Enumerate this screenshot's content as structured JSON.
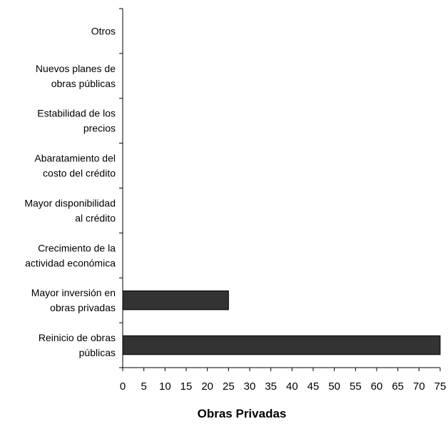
{
  "chart_data": {
    "type": "bar",
    "orientation": "horizontal",
    "categories": [
      "Otros",
      "Nuevos planes de obras públicas",
      "Estabilidad de los precios",
      "Abaratamiento del costo del crédito",
      "Mayor disponibilidad al crédito",
      "Crecimiento de la actividad económica",
      "Mayor inversión en obras privadas",
      "Reinicio de obras públicas"
    ],
    "category_label_lines": [
      [
        "Otros"
      ],
      [
        "Nuevos planes de",
        "obras públicas"
      ],
      [
        "Estabilidad de los",
        "precios"
      ],
      [
        "Abaratamiento del",
        "costo del crédito"
      ],
      [
        "Mayor disponibilidad",
        "al crédito"
      ],
      [
        "Crecimiento de la",
        "actividad económica"
      ],
      [
        "Mayor inversión en",
        "obras privadas"
      ],
      [
        "Reinicio de obras",
        "públicas"
      ]
    ],
    "values": [
      0,
      0,
      0,
      0,
      0,
      0,
      25,
      75
    ],
    "title": "",
    "xlabel": "Obras Privadas",
    "ylabel": "",
    "xlim": [
      0,
      75
    ],
    "xticks": [
      "0",
      "5",
      "10",
      "15",
      "20",
      "25",
      "30",
      "35",
      "40",
      "45",
      "50",
      "55",
      "60",
      "65",
      "70",
      "75"
    ],
    "grid": false,
    "legend": "none",
    "bar_color": "#333333",
    "bar_edge_color": "#000000"
  }
}
